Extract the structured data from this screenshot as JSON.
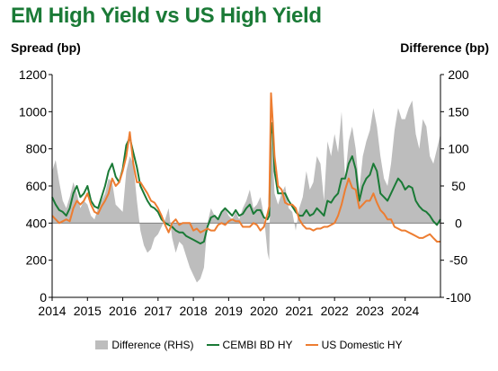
{
  "title": "EM High Yield vs US High Yield",
  "chart_data": {
    "type": "line",
    "title": "EM High Yield vs US High Yield",
    "ylabel_left": "Spread (bp)",
    "ylabel_right": "Difference (bp)",
    "ylim_left": [
      0,
      1200
    ],
    "ylim_right": [
      -100,
      200
    ],
    "yticks_left": [
      "0",
      "200",
      "400",
      "600",
      "800",
      "1000",
      "1200"
    ],
    "yticks_right": [
      "-100",
      "-50",
      "0",
      "50",
      "100",
      "150",
      "200"
    ],
    "xlim": [
      2014,
      2025
    ],
    "xticks": [
      "2014",
      "2015",
      "2016",
      "2017",
      "2018",
      "2019",
      "2020",
      "2021",
      "2022",
      "2023",
      "2024"
    ],
    "legend_position": "bottom",
    "series": [
      {
        "name": "Difference (RHS)",
        "type": "area",
        "axis": "right",
        "color": "#bdbdbd",
        "x": [
          2014.0,
          2014.1,
          2014.2,
          2014.3,
          2014.4,
          2014.5,
          2014.6,
          2014.7,
          2014.8,
          2014.9,
          2015.0,
          2015.1,
          2015.2,
          2015.3,
          2015.4,
          2015.5,
          2015.6,
          2015.7,
          2015.8,
          2015.9,
          2016.0,
          2016.1,
          2016.2,
          2016.3,
          2016.4,
          2016.5,
          2016.6,
          2016.7,
          2016.8,
          2016.9,
          2017.0,
          2017.1,
          2017.2,
          2017.3,
          2017.4,
          2017.5,
          2017.6,
          2017.7,
          2017.8,
          2017.9,
          2018.0,
          2018.1,
          2018.2,
          2018.3,
          2018.4,
          2018.5,
          2018.6,
          2018.7,
          2018.8,
          2018.9,
          2019.0,
          2019.1,
          2019.2,
          2019.3,
          2019.4,
          2019.5,
          2019.6,
          2019.7,
          2019.8,
          2019.9,
          2020.0,
          2020.1,
          2020.15,
          2020.2,
          2020.25,
          2020.3,
          2020.4,
          2020.5,
          2020.6,
          2020.7,
          2020.8,
          2020.9,
          2021.0,
          2021.1,
          2021.2,
          2021.3,
          2021.4,
          2021.5,
          2021.6,
          2021.7,
          2021.8,
          2021.9,
          2022.0,
          2022.1,
          2022.2,
          2022.3,
          2022.4,
          2022.5,
          2022.6,
          2022.7,
          2022.8,
          2022.9,
          2023.0,
          2023.1,
          2023.2,
          2023.3,
          2023.4,
          2023.5,
          2023.6,
          2023.7,
          2023.8,
          2023.9,
          2024.0,
          2024.1,
          2024.2,
          2024.3,
          2024.4,
          2024.5,
          2024.6,
          2024.7,
          2024.8,
          2024.9,
          2025.0
        ],
        "values": [
          70,
          85,
          55,
          30,
          20,
          35,
          55,
          40,
          20,
          30,
          25,
          10,
          5,
          20,
          30,
          40,
          60,
          55,
          25,
          20,
          15,
          70,
          90,
          80,
          30,
          -10,
          -30,
          -40,
          -35,
          -20,
          -15,
          -5,
          5,
          20,
          -20,
          -40,
          -25,
          -30,
          -45,
          -60,
          -70,
          -80,
          -75,
          -60,
          0,
          20,
          10,
          5,
          15,
          20,
          10,
          5,
          15,
          5,
          20,
          30,
          45,
          20,
          25,
          35,
          10,
          -40,
          -50,
          130,
          90,
          40,
          25,
          40,
          50,
          20,
          15,
          -10,
          20,
          35,
          70,
          45,
          55,
          90,
          80,
          30,
          110,
          90,
          120,
          95,
          150,
          60,
          110,
          130,
          100,
          45,
          90,
          110,
          125,
          155,
          130,
          90,
          60,
          50,
          80,
          125,
          155,
          140,
          140,
          155,
          165,
          120,
          100,
          140,
          130,
          90,
          80,
          100,
          120
        ]
      },
      {
        "name": "CEMBI BD HY",
        "type": "line",
        "axis": "left",
        "color": "#1a7a36",
        "x": [
          2014.0,
          2014.1,
          2014.2,
          2014.3,
          2014.4,
          2014.5,
          2014.6,
          2014.7,
          2014.8,
          2014.9,
          2015.0,
          2015.1,
          2015.2,
          2015.3,
          2015.4,
          2015.5,
          2015.6,
          2015.7,
          2015.8,
          2015.9,
          2016.0,
          2016.1,
          2016.2,
          2016.3,
          2016.4,
          2016.5,
          2016.6,
          2016.7,
          2016.8,
          2016.9,
          2017.0,
          2017.1,
          2017.2,
          2017.3,
          2017.4,
          2017.5,
          2017.6,
          2017.7,
          2017.8,
          2017.9,
          2018.0,
          2018.1,
          2018.2,
          2018.3,
          2018.4,
          2018.5,
          2018.6,
          2018.7,
          2018.8,
          2018.9,
          2019.0,
          2019.1,
          2019.2,
          2019.3,
          2019.4,
          2019.5,
          2019.6,
          2019.7,
          2019.8,
          2019.9,
          2020.0,
          2020.1,
          2020.15,
          2020.2,
          2020.25,
          2020.3,
          2020.4,
          2020.5,
          2020.6,
          2020.7,
          2020.8,
          2020.9,
          2021.0,
          2021.1,
          2021.2,
          2021.3,
          2021.4,
          2021.5,
          2021.6,
          2021.7,
          2021.8,
          2021.9,
          2022.0,
          2022.1,
          2022.2,
          2022.3,
          2022.4,
          2022.5,
          2022.6,
          2022.7,
          2022.8,
          2022.9,
          2023.0,
          2023.1,
          2023.2,
          2023.3,
          2023.4,
          2023.5,
          2023.6,
          2023.7,
          2023.8,
          2023.9,
          2024.0,
          2024.1,
          2024.2,
          2024.3,
          2024.4,
          2024.5,
          2024.6,
          2024.7,
          2024.8,
          2024.9,
          2025.0
        ],
        "values": [
          540,
          500,
          470,
          460,
          440,
          480,
          560,
          600,
          540,
          560,
          600,
          520,
          490,
          480,
          540,
          600,
          680,
          720,
          650,
          620,
          690,
          820,
          860,
          780,
          700,
          600,
          560,
          520,
          490,
          480,
          460,
          420,
          400,
          390,
          380,
          360,
          350,
          350,
          330,
          320,
          310,
          300,
          290,
          300,
          380,
          430,
          440,
          420,
          460,
          480,
          460,
          440,
          470,
          440,
          450,
          480,
          500,
          450,
          470,
          470,
          430,
          420,
          440,
          940,
          880,
          680,
          560,
          560,
          560,
          520,
          490,
          460,
          440,
          440,
          470,
          440,
          450,
          480,
          460,
          440,
          520,
          510,
          540,
          560,
          640,
          640,
          720,
          760,
          690,
          520,
          600,
          640,
          660,
          720,
          680,
          560,
          540,
          520,
          560,
          600,
          640,
          620,
          580,
          600,
          590,
          520,
          490,
          470,
          460,
          440,
          410,
          390,
          420
        ]
      },
      {
        "name": "US Domestic HY",
        "type": "line",
        "axis": "left",
        "color": "#ed7d31",
        "x": [
          2014.0,
          2014.1,
          2014.2,
          2014.3,
          2014.4,
          2014.5,
          2014.6,
          2014.7,
          2014.8,
          2014.9,
          2015.0,
          2015.1,
          2015.2,
          2015.3,
          2015.4,
          2015.5,
          2015.6,
          2015.7,
          2015.8,
          2015.9,
          2016.0,
          2016.1,
          2016.2,
          2016.3,
          2016.4,
          2016.5,
          2016.6,
          2016.7,
          2016.8,
          2016.9,
          2017.0,
          2017.1,
          2017.2,
          2017.3,
          2017.4,
          2017.5,
          2017.6,
          2017.7,
          2017.8,
          2017.9,
          2018.0,
          2018.1,
          2018.2,
          2018.3,
          2018.4,
          2018.5,
          2018.6,
          2018.7,
          2018.8,
          2018.9,
          2019.0,
          2019.1,
          2019.2,
          2019.3,
          2019.4,
          2019.5,
          2019.6,
          2019.7,
          2019.8,
          2019.9,
          2020.0,
          2020.1,
          2020.15,
          2020.2,
          2020.25,
          2020.3,
          2020.4,
          2020.5,
          2020.6,
          2020.7,
          2020.8,
          2020.9,
          2021.0,
          2021.1,
          2021.2,
          2021.3,
          2021.4,
          2021.5,
          2021.6,
          2021.7,
          2021.8,
          2021.9,
          2022.0,
          2022.1,
          2022.2,
          2022.3,
          2022.4,
          2022.5,
          2022.6,
          2022.7,
          2022.8,
          2022.9,
          2023.0,
          2023.1,
          2023.2,
          2023.3,
          2023.4,
          2023.5,
          2023.6,
          2023.7,
          2023.8,
          2023.9,
          2024.0,
          2024.1,
          2024.2,
          2024.3,
          2024.4,
          2024.5,
          2024.6,
          2024.7,
          2024.8,
          2024.9,
          2025.0
        ],
        "values": [
          440,
          420,
          400,
          410,
          420,
          410,
          480,
          520,
          500,
          520,
          560,
          500,
          460,
          450,
          490,
          520,
          560,
          640,
          600,
          620,
          680,
          760,
          890,
          720,
          620,
          620,
          590,
          560,
          520,
          510,
          480,
          440,
          390,
          350,
          400,
          420,
          390,
          400,
          400,
          400,
          360,
          370,
          350,
          360,
          370,
          360,
          360,
          390,
          400,
          390,
          410,
          420,
          410,
          410,
          380,
          380,
          380,
          400,
          390,
          360,
          380,
          450,
          490,
          1100,
          940,
          760,
          600,
          580,
          510,
          500,
          500,
          480,
          420,
          390,
          370,
          370,
          360,
          370,
          370,
          380,
          380,
          390,
          400,
          440,
          500,
          580,
          640,
          590,
          580,
          480,
          500,
          520,
          520,
          560,
          510,
          470,
          450,
          420,
          420,
          380,
          370,
          360,
          360,
          350,
          340,
          330,
          320,
          320,
          330,
          340,
          320,
          300,
          300
        ]
      }
    ]
  }
}
